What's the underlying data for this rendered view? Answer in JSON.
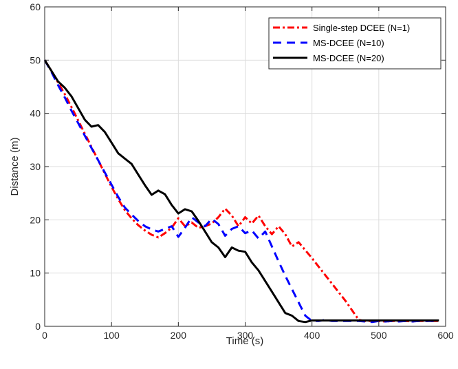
{
  "chart_data": {
    "type": "line",
    "title": "",
    "xlabel": "Time (s)",
    "ylabel": "Distance (m)",
    "xlim": [
      0,
      600
    ],
    "ylim": [
      0,
      60
    ],
    "xticks": [
      0,
      100,
      200,
      300,
      400,
      500,
      600
    ],
    "yticks": [
      0,
      10,
      20,
      30,
      40,
      50,
      60
    ],
    "grid": true,
    "legend_position": "top-right",
    "series": [
      {
        "name": "Single-step DCEE (N=1)",
        "color": "#ff0000",
        "line_style": "dash-dot",
        "x": [
          0,
          10,
          20,
          30,
          40,
          50,
          60,
          70,
          80,
          90,
          100,
          110,
          120,
          130,
          140,
          150,
          160,
          170,
          180,
          190,
          200,
          210,
          220,
          230,
          240,
          250,
          260,
          270,
          280,
          290,
          300,
          310,
          320,
          330,
          340,
          350,
          360,
          370,
          380,
          390,
          400,
          410,
          420,
          430,
          440,
          450,
          460,
          470,
          480,
          490,
          500,
          510,
          520,
          530,
          540,
          550,
          560,
          570,
          580,
          590
        ],
        "y": [
          50,
          48,
          45.8,
          43.6,
          41.2,
          38.7,
          36.2,
          33.7,
          31.2,
          28.7,
          26.2,
          23.9,
          21.8,
          20.3,
          19,
          18,
          17.2,
          16.7,
          17.5,
          18.5,
          20.3,
          18.8,
          19.5,
          18.5,
          18.8,
          19.3,
          20.5,
          22.1,
          20.8,
          18.8,
          20.5,
          19.3,
          20.8,
          18.8,
          17.3,
          18.8,
          17.3,
          15,
          15.8,
          14.3,
          12.8,
          11.2,
          9.6,
          8,
          6.4,
          4.8,
          3,
          1.2,
          1,
          1,
          1,
          0.9,
          1,
          1,
          1,
          0.9,
          1,
          1,
          1,
          1
        ]
      },
      {
        "name": "MS-DCEE (N=10)",
        "color": "#0000ff",
        "line_style": "dashed",
        "x": [
          0,
          10,
          20,
          30,
          40,
          50,
          60,
          70,
          80,
          90,
          100,
          110,
          120,
          130,
          140,
          150,
          160,
          170,
          180,
          190,
          200,
          210,
          220,
          230,
          240,
          250,
          260,
          270,
          280,
          290,
          300,
          310,
          320,
          330,
          340,
          350,
          360,
          370,
          380,
          390,
          400,
          410,
          420,
          430,
          440,
          450,
          460,
          470,
          480,
          490,
          500,
          510,
          520,
          530,
          540,
          550,
          560,
          570,
          580,
          590
        ],
        "y": [
          50,
          47.8,
          45.3,
          43,
          40.5,
          38.2,
          35.8,
          33.5,
          31.2,
          28.9,
          26.6,
          24.3,
          22.3,
          21,
          19.8,
          18.8,
          18.2,
          17.8,
          18.3,
          18.8,
          16.8,
          18.5,
          20.5,
          19.5,
          18.8,
          20.2,
          19.2,
          17,
          18.3,
          18.8,
          17.5,
          18,
          16.5,
          17.8,
          15,
          12.2,
          9.5,
          7,
          4.5,
          2,
          1,
          1,
          1.2,
          1,
          1,
          1,
          1,
          1,
          0.9,
          0.8,
          1,
          0.9,
          1,
          0.9,
          1,
          0.9,
          1,
          1,
          1,
          1
        ]
      },
      {
        "name": "MS-DCEE (N=20)",
        "color": "#000000",
        "line_style": "solid",
        "x": [
          0,
          10,
          20,
          30,
          40,
          50,
          60,
          70,
          80,
          90,
          100,
          110,
          120,
          130,
          140,
          150,
          160,
          170,
          180,
          190,
          200,
          210,
          220,
          230,
          240,
          250,
          260,
          270,
          280,
          290,
          300,
          310,
          320,
          330,
          340,
          350,
          360,
          370,
          380,
          390,
          400,
          410,
          420,
          430,
          440,
          450,
          460,
          470,
          480,
          490,
          500,
          510,
          520,
          530,
          540,
          550,
          560,
          570,
          580,
          590
        ],
        "y": [
          50,
          48,
          46,
          44.8,
          43.2,
          41,
          38.8,
          37.5,
          37.8,
          36.5,
          34.5,
          32.5,
          31.5,
          30.5,
          28.5,
          26.5,
          24.7,
          25.5,
          24.8,
          22.8,
          21.2,
          22,
          21.6,
          19.8,
          17.8,
          15.8,
          14.8,
          13,
          14.8,
          14.2,
          14,
          12,
          10.5,
          8.5,
          6.5,
          4.5,
          2.5,
          2,
          1,
          0.8,
          1.1,
          1.1,
          1.1,
          1.1,
          1.1,
          1.1,
          1.1,
          1.1,
          1.1,
          1.1,
          1.1,
          1.1,
          1.1,
          1.1,
          1.1,
          1.1,
          1.1,
          1.1,
          1.1,
          1.1
        ]
      }
    ]
  }
}
